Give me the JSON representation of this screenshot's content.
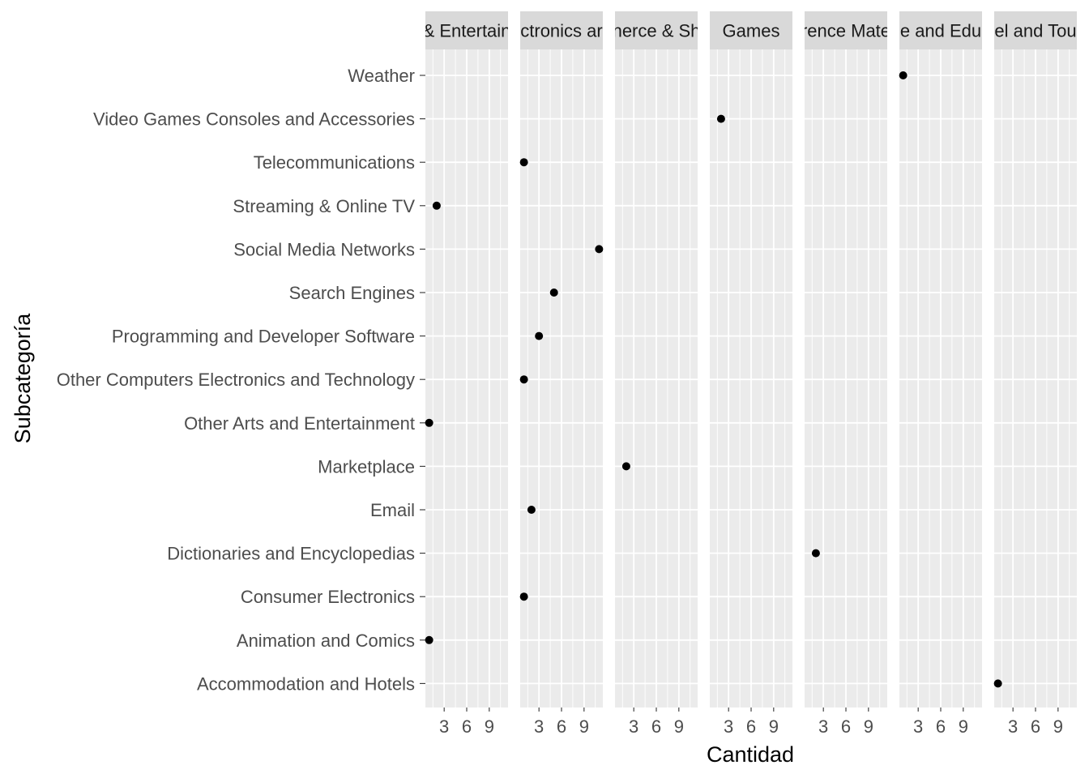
{
  "chart_data": {
    "type": "scatter",
    "xlabel": "Cantidad",
    "ylabel": "Subcategoría",
    "xlim": [
      0.5,
      11.5
    ],
    "x_ticks": [
      3,
      6,
      9
    ],
    "grid": true,
    "facets": [
      "Arts & Entertainment",
      "Computers Electronics and Technology",
      "E-commerce & Shopping",
      "Games",
      "Reference Materials",
      "Science and Education",
      "Travel and Tourism"
    ],
    "facet_strip_labels": [
      "& Entertain",
      "ctronics ar",
      "nerce & Sh",
      "Games",
      "rence Mate",
      "e and Edu",
      "el and Tou"
    ],
    "categories": [
      "Weather",
      "Video Games Consoles and Accessories",
      "Telecommunications",
      "Streaming & Online TV",
      "Social Media Networks",
      "Search Engines",
      "Programming and Developer Software",
      "Other Computers Electronics and Technology",
      "Other Arts and Entertainment",
      "Marketplace",
      "Email",
      "Dictionaries and Encyclopedias",
      "Consumer Electronics",
      "Animation and Comics",
      "Accommodation and Hotels"
    ],
    "points": [
      {
        "facet": 5,
        "category": "Weather",
        "x": 1
      },
      {
        "facet": 3,
        "category": "Video Games Consoles and Accessories",
        "x": 2
      },
      {
        "facet": 1,
        "category": "Telecommunications",
        "x": 1
      },
      {
        "facet": 0,
        "category": "Streaming & Online TV",
        "x": 2
      },
      {
        "facet": 1,
        "category": "Social Media Networks",
        "x": 11
      },
      {
        "facet": 1,
        "category": "Search Engines",
        "x": 5
      },
      {
        "facet": 1,
        "category": "Programming and Developer Software",
        "x": 3
      },
      {
        "facet": 1,
        "category": "Other Computers Electronics and Technology",
        "x": 1
      },
      {
        "facet": 0,
        "category": "Other Arts and Entertainment",
        "x": 1
      },
      {
        "facet": 2,
        "category": "Marketplace",
        "x": 2
      },
      {
        "facet": 1,
        "category": "Email",
        "x": 2
      },
      {
        "facet": 4,
        "category": "Dictionaries and Encyclopedias",
        "x": 2
      },
      {
        "facet": 1,
        "category": "Consumer Electronics",
        "x": 1
      },
      {
        "facet": 0,
        "category": "Animation and Comics",
        "x": 1
      },
      {
        "facet": 6,
        "category": "Accommodation and Hotels",
        "x": 1
      }
    ],
    "colors": {
      "panel_bg": "#ebebeb",
      "strip_bg": "#d9d9d9",
      "grid": "#ffffff",
      "point": "#000000"
    }
  }
}
